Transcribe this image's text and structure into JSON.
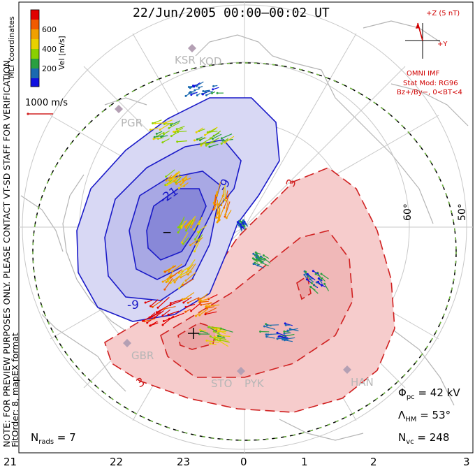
{
  "title": "22/Jun/2005 00:00–00:02 UT",
  "notice": "NOTE: FOR PREVIEW PURPOSES ONLY. PLEASE CONTACT VT-SD STAFF FOR VERIFICATION.",
  "fit_order": "FitOrder: 8, mapEX format",
  "coords": "MLT coordinates",
  "color_bar": {
    "label": "Vel [m/s]",
    "ticks": [
      "600",
      "400",
      "200"
    ],
    "colors": [
      "#e00000",
      "#f05a00",
      "#f0a000",
      "#e8d000",
      "#8ad000",
      "#2aa040",
      "#1a6ab0",
      "#1010e0"
    ]
  },
  "vector_scale": "1000 m/s",
  "imf": {
    "z_label": "+Z (5 nT)",
    "y_label": "+Y",
    "source": "OMNI IMF",
    "model": "Stat Mod: RG96",
    "condition": "Bz+/By−, 0<BT<4"
  },
  "stations": [
    "KSR",
    "KOD",
    "PGR",
    "GBR",
    "STO",
    "PYK",
    "HAN"
  ],
  "lat_labels": [
    "60°",
    "50°"
  ],
  "mlt_ticks": [
    "21",
    "22",
    "23",
    "0",
    "1",
    "2",
    "3"
  ],
  "contours": {
    "negative": [
      "-21",
      "-9",
      "-9",
      "−"
    ],
    "positive": [
      "3",
      "3",
      "+"
    ]
  },
  "stats": {
    "phi_pc": "42 kV",
    "lambda_hm": "53°",
    "n_vc": "248",
    "n_rads": "7"
  },
  "colors": {
    "neg_fill": "#c8c8f0",
    "neg_line": "#1a1ac8",
    "pos_fill": "#f6cccc",
    "pos_line": "#d02020",
    "grid": "#c8c8c8",
    "boundary": "#7ad040"
  }
}
